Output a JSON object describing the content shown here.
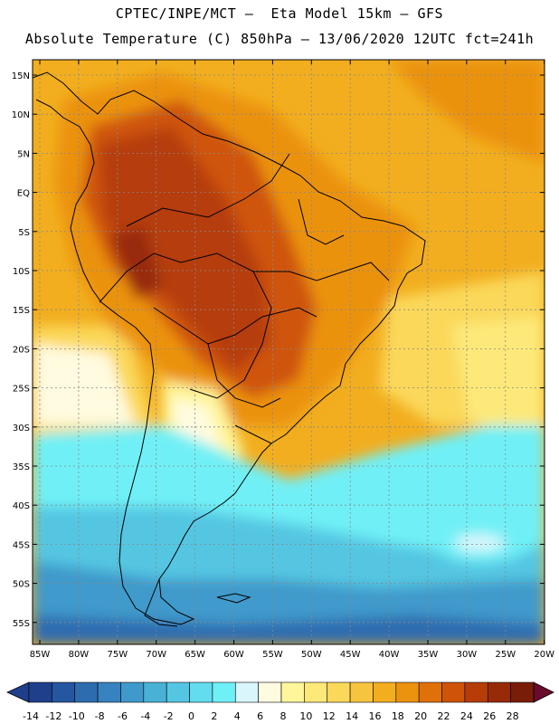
{
  "header": {
    "line1": "CPTEC/INPE/MCT –  Eta Model 15km – GFS",
    "line2": "Absolute Temperature (C) 850hPa – 13/06/2020 12UTC fct=241h"
  },
  "map": {
    "lat_labels": [
      "15N",
      "10N",
      "5N",
      "EQ",
      "5S",
      "10S",
      "15S",
      "20S",
      "25S",
      "30S",
      "35S",
      "40S",
      "45S",
      "50S",
      "55S"
    ],
    "lon_labels": [
      "85W",
      "80W",
      "75W",
      "70W",
      "65W",
      "60W",
      "55W",
      "50W",
      "45W",
      "40W",
      "35W",
      "30W",
      "25W",
      "20W"
    ],
    "region": "South America"
  },
  "colorbar": {
    "labels": [
      "-14",
      "-12",
      "-10",
      "-8",
      "-6",
      "-4",
      "-2",
      "0",
      "2",
      "4",
      "6",
      "8",
      "10",
      "12",
      "14",
      "16",
      "18",
      "20",
      "22",
      "24",
      "26",
      "28"
    ],
    "colors": [
      "#1f3f8c",
      "#2556a0",
      "#2e6cb0",
      "#3683bf",
      "#3f9acb",
      "#49b1d6",
      "#55c6e2",
      "#62dcee",
      "#6ff0f6",
      "#d8f6fc",
      "#fffbe0",
      "#fff59a",
      "#fde97a",
      "#fbd85a",
      "#f7c440",
      "#f2ae1f",
      "#eb920e",
      "#e07009",
      "#cf5408",
      "#b63d07",
      "#982b07",
      "#7a1d08"
    ]
  }
}
